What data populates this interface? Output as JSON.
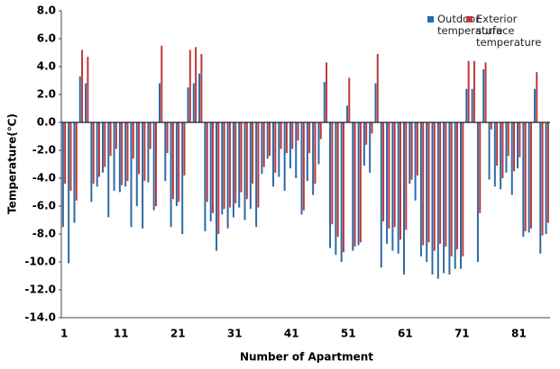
{
  "chart_data": {
    "type": "bar",
    "x_label": "Number of Apartment",
    "y_label": "Temperature(℃)",
    "categories": [
      "1",
      null,
      null,
      null,
      null,
      null,
      null,
      null,
      null,
      null,
      "11",
      null,
      null,
      null,
      null,
      null,
      null,
      null,
      null,
      null,
      "21",
      null,
      null,
      null,
      null,
      null,
      null,
      null,
      null,
      null,
      "31",
      null,
      null,
      null,
      null,
      null,
      null,
      null,
      null,
      null,
      "41",
      null,
      null,
      null,
      null,
      null,
      null,
      null,
      null,
      null,
      "51",
      null,
      null,
      null,
      null,
      null,
      null,
      null,
      null,
      null,
      "61",
      null,
      null,
      null,
      null,
      null,
      null,
      null,
      null,
      null,
      "71",
      null,
      null,
      null,
      null,
      null,
      null,
      null,
      null,
      null,
      "81",
      null,
      null,
      null,
      null,
      null
    ],
    "series": [
      {
        "name": "Outdoor temperature",
        "color": "#2f6aa3",
        "values": [
          -7.5,
          -10.1,
          -7.2,
          3.3,
          2.8,
          -5.7,
          -4.6,
          -3.6,
          -6.8,
          -4.9,
          -5.0,
          -4.6,
          -7.5,
          -6.0,
          -7.6,
          -4.3,
          -6.3,
          2.8,
          -4.2,
          -7.5,
          -6.0,
          -8.0,
          2.5,
          2.8,
          3.5,
          -7.8,
          -7.1,
          -9.2,
          -6.6,
          -7.6,
          -6.8,
          -6.1,
          -7.0,
          -6.2,
          -7.5,
          -3.7,
          -2.6,
          -4.6,
          -3.9,
          -4.9,
          -3.3,
          -4.0,
          -6.6,
          -4.2,
          -5.2,
          -3.0,
          2.9,
          -9.0,
          -9.5,
          -10.0,
          1.2,
          -9.2,
          -8.8,
          -3.1,
          -3.6,
          2.8,
          -10.4,
          -8.7,
          -9.2,
          -9.4,
          -10.9,
          -4.4,
          -5.6,
          -9.6,
          -10.0,
          -10.9,
          -11.2,
          -10.8,
          -10.9,
          -10.5,
          -10.5,
          2.4,
          2.4,
          -10.0,
          3.8,
          -4.1,
          -4.6,
          -4.8,
          -3.6,
          -5.2,
          -3.3,
          -8.2,
          -7.9,
          2.4,
          -9.4,
          -8.0
        ]
      },
      {
        "name": "Exterior surface temperature",
        "color": "#c0393b",
        "values": [
          -4.4,
          -4.9,
          -5.6,
          5.2,
          4.7,
          -4.4,
          -3.9,
          -3.2,
          -2.4,
          -1.9,
          -4.5,
          -4.2,
          -2.6,
          -3.7,
          -4.2,
          -1.9,
          -6.0,
          5.5,
          -2.2,
          -5.5,
          -5.7,
          -3.8,
          5.2,
          5.4,
          4.9,
          -5.7,
          -6.5,
          -8.0,
          -6.2,
          -6.1,
          -5.8,
          -5.0,
          -5.5,
          -4.4,
          -6.1,
          -3.2,
          -2.4,
          -3.6,
          -1.9,
          -2.2,
          -1.9,
          -1.3,
          -6.3,
          -2.2,
          -4.4,
          -1.2,
          4.3,
          -7.3,
          -8.2,
          -9.3,
          3.2,
          -8.9,
          -8.6,
          -1.6,
          -0.8,
          4.9,
          -7.1,
          -7.6,
          -7.5,
          -8.4,
          -7.7,
          -4.1,
          -3.8,
          -8.8,
          -8.6,
          -9.2,
          -8.7,
          -8.9,
          -9.6,
          -9.1,
          -9.6,
          4.4,
          4.4,
          -6.5,
          4.3,
          -0.5,
          -3.1,
          -4.0,
          -2.4,
          -3.5,
          -2.5,
          -7.8,
          -7.6,
          3.6,
          -8.1,
          -7.2
        ]
      }
    ],
    "ylim": [
      -14,
      8
    ],
    "yticks": [
      {
        "value": 8,
        "label": "8.0"
      },
      {
        "value": 6,
        "label": "6.0"
      },
      {
        "value": 4,
        "label": "4.0"
      },
      {
        "value": 2,
        "label": "2.0"
      },
      {
        "value": 0,
        "label": "0.0"
      },
      {
        "value": -2,
        "label": "-2.0"
      },
      {
        "value": -4,
        "label": "-4.0"
      },
      {
        "value": -6,
        "label": "-6.0"
      },
      {
        "value": -8,
        "label": "-8.0"
      },
      {
        "value": -10,
        "label": "-10.0"
      },
      {
        "value": -12,
        "label": "-12.0"
      },
      {
        "value": -14,
        "label": "-14.0"
      }
    ],
    "grid": false,
    "legend": "upper right"
  }
}
